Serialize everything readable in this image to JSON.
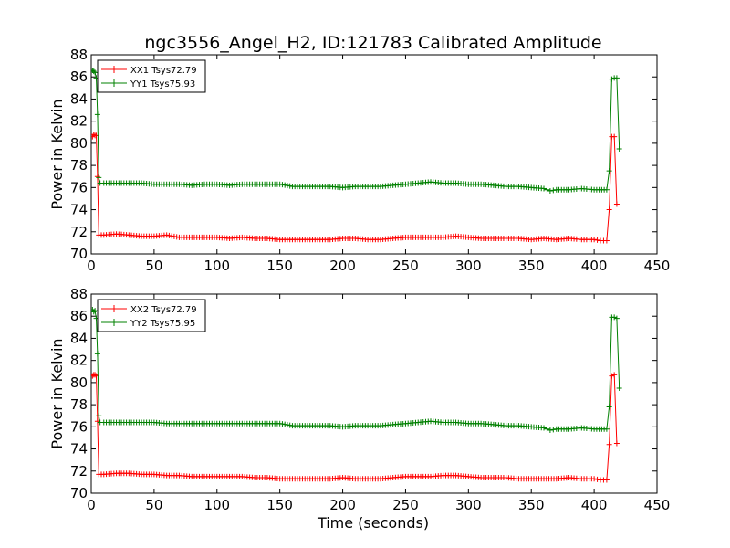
{
  "title": "ngc3556_Angel_H2, ID:121783 Calibrated Amplitude",
  "xlabel": "Time (seconds)",
  "colors": {
    "xx": "#ff0000",
    "yy": "#008000"
  },
  "chart_data": [
    {
      "type": "line",
      "ylabel": "Power in Kelvin",
      "xlim": [
        0,
        450
      ],
      "ylim": [
        70,
        88
      ],
      "xticks": [
        0,
        50,
        100,
        150,
        200,
        250,
        300,
        350,
        400,
        450
      ],
      "yticks": [
        70,
        72,
        74,
        76,
        78,
        80,
        82,
        84,
        86,
        88
      ],
      "legend_position": "top-left",
      "grid": false,
      "series": [
        {
          "name": "XX1 Tsys72.79",
          "color": "#ff0000",
          "points": [
            [
              1,
              80.6
            ],
            [
              2,
              80.8
            ],
            [
              3,
              80.7
            ],
            [
              4,
              80.7
            ],
            [
              5,
              77.0
            ],
            [
              6,
              71.7
            ],
            [
              10,
              71.7
            ],
            [
              20,
              71.8
            ],
            [
              30,
              71.7
            ],
            [
              40,
              71.6
            ],
            [
              50,
              71.6
            ],
            [
              60,
              71.7
            ],
            [
              70,
              71.5
            ],
            [
              80,
              71.5
            ],
            [
              90,
              71.5
            ],
            [
              100,
              71.5
            ],
            [
              110,
              71.4
            ],
            [
              120,
              71.5
            ],
            [
              130,
              71.4
            ],
            [
              140,
              71.4
            ],
            [
              150,
              71.3
            ],
            [
              160,
              71.3
            ],
            [
              170,
              71.3
            ],
            [
              180,
              71.3
            ],
            [
              190,
              71.3
            ],
            [
              200,
              71.4
            ],
            [
              210,
              71.4
            ],
            [
              220,
              71.3
            ],
            [
              230,
              71.3
            ],
            [
              240,
              71.4
            ],
            [
              250,
              71.5
            ],
            [
              260,
              71.5
            ],
            [
              270,
              71.5
            ],
            [
              280,
              71.5
            ],
            [
              290,
              71.6
            ],
            [
              300,
              71.5
            ],
            [
              310,
              71.4
            ],
            [
              320,
              71.4
            ],
            [
              330,
              71.4
            ],
            [
              340,
              71.4
            ],
            [
              350,
              71.3
            ],
            [
              360,
              71.4
            ],
            [
              370,
              71.3
            ],
            [
              380,
              71.4
            ],
            [
              390,
              71.3
            ],
            [
              400,
              71.3
            ],
            [
              405,
              71.2
            ],
            [
              410,
              71.2
            ],
            [
              412,
              74.0
            ],
            [
              414,
              80.6
            ],
            [
              416,
              80.6
            ],
            [
              418,
              74.5
            ]
          ]
        },
        {
          "name": "YY1 Tsys75.93",
          "color": "#008000",
          "points": [
            [
              1,
              86.6
            ],
            [
              2,
              86.5
            ],
            [
              3,
              86.4
            ],
            [
              4,
              85.9
            ],
            [
              5,
              82.6
            ],
            [
              6,
              76.9
            ],
            [
              7,
              76.4
            ],
            [
              10,
              76.4
            ],
            [
              20,
              76.4
            ],
            [
              30,
              76.4
            ],
            [
              40,
              76.4
            ],
            [
              50,
              76.3
            ],
            [
              60,
              76.3
            ],
            [
              70,
              76.3
            ],
            [
              80,
              76.2
            ],
            [
              90,
              76.3
            ],
            [
              100,
              76.3
            ],
            [
              110,
              76.2
            ],
            [
              120,
              76.3
            ],
            [
              130,
              76.3
            ],
            [
              140,
              76.3
            ],
            [
              150,
              76.3
            ],
            [
              160,
              76.1
            ],
            [
              170,
              76.1
            ],
            [
              180,
              76.1
            ],
            [
              190,
              76.1
            ],
            [
              200,
              76.0
            ],
            [
              210,
              76.1
            ],
            [
              220,
              76.1
            ],
            [
              230,
              76.1
            ],
            [
              240,
              76.2
            ],
            [
              250,
              76.3
            ],
            [
              260,
              76.4
            ],
            [
              270,
              76.5
            ],
            [
              280,
              76.4
            ],
            [
              290,
              76.4
            ],
            [
              300,
              76.3
            ],
            [
              310,
              76.3
            ],
            [
              320,
              76.2
            ],
            [
              330,
              76.1
            ],
            [
              340,
              76.1
            ],
            [
              350,
              76.0
            ],
            [
              360,
              75.9
            ],
            [
              365,
              75.7
            ],
            [
              370,
              75.8
            ],
            [
              380,
              75.8
            ],
            [
              390,
              75.9
            ],
            [
              400,
              75.8
            ],
            [
              410,
              75.8
            ],
            [
              412,
              77.5
            ],
            [
              414,
              85.8
            ],
            [
              416,
              85.9
            ],
            [
              418,
              85.9
            ],
            [
              420,
              79.5
            ]
          ]
        }
      ]
    },
    {
      "type": "line",
      "ylabel": "Power in Kelvin",
      "xlim": [
        0,
        450
      ],
      "ylim": [
        70,
        88
      ],
      "xticks": [
        0,
        50,
        100,
        150,
        200,
        250,
        300,
        350,
        400,
        450
      ],
      "yticks": [
        70,
        72,
        74,
        76,
        78,
        80,
        82,
        84,
        86,
        88
      ],
      "legend_position": "top-left",
      "grid": false,
      "series": [
        {
          "name": "XX2 Tsys72.79",
          "color": "#ff0000",
          "points": [
            [
              1,
              80.6
            ],
            [
              2,
              80.7
            ],
            [
              3,
              80.7
            ],
            [
              4,
              80.6
            ],
            [
              5,
              76.5
            ],
            [
              6,
              71.7
            ],
            [
              10,
              71.7
            ],
            [
              20,
              71.8
            ],
            [
              30,
              71.8
            ],
            [
              40,
              71.7
            ],
            [
              50,
              71.7
            ],
            [
              60,
              71.6
            ],
            [
              70,
              71.6
            ],
            [
              80,
              71.5
            ],
            [
              90,
              71.5
            ],
            [
              100,
              71.5
            ],
            [
              110,
              71.5
            ],
            [
              120,
              71.5
            ],
            [
              130,
              71.4
            ],
            [
              140,
              71.4
            ],
            [
              150,
              71.3
            ],
            [
              160,
              71.3
            ],
            [
              170,
              71.3
            ],
            [
              180,
              71.3
            ],
            [
              190,
              71.3
            ],
            [
              200,
              71.4
            ],
            [
              210,
              71.3
            ],
            [
              220,
              71.3
            ],
            [
              230,
              71.3
            ],
            [
              240,
              71.4
            ],
            [
              250,
              71.5
            ],
            [
              260,
              71.5
            ],
            [
              270,
              71.5
            ],
            [
              280,
              71.6
            ],
            [
              290,
              71.6
            ],
            [
              300,
              71.5
            ],
            [
              310,
              71.4
            ],
            [
              320,
              71.4
            ],
            [
              330,
              71.4
            ],
            [
              340,
              71.3
            ],
            [
              350,
              71.3
            ],
            [
              360,
              71.3
            ],
            [
              370,
              71.3
            ],
            [
              380,
              71.4
            ],
            [
              390,
              71.3
            ],
            [
              400,
              71.3
            ],
            [
              405,
              71.2
            ],
            [
              410,
              71.2
            ],
            [
              412,
              74.4
            ],
            [
              414,
              80.6
            ],
            [
              416,
              80.7
            ],
            [
              418,
              74.5
            ]
          ]
        },
        {
          "name": "YY2 Tsys75.95",
          "color": "#008000",
          "points": [
            [
              1,
              86.6
            ],
            [
              2,
              86.4
            ],
            [
              3,
              86.5
            ],
            [
              4,
              85.8
            ],
            [
              5,
              82.6
            ],
            [
              6,
              77.0
            ],
            [
              7,
              76.4
            ],
            [
              10,
              76.4
            ],
            [
              20,
              76.4
            ],
            [
              30,
              76.4
            ],
            [
              40,
              76.4
            ],
            [
              50,
              76.4
            ],
            [
              60,
              76.3
            ],
            [
              70,
              76.3
            ],
            [
              80,
              76.3
            ],
            [
              90,
              76.3
            ],
            [
              100,
              76.3
            ],
            [
              110,
              76.3
            ],
            [
              120,
              76.3
            ],
            [
              130,
              76.3
            ],
            [
              140,
              76.3
            ],
            [
              150,
              76.3
            ],
            [
              160,
              76.1
            ],
            [
              170,
              76.1
            ],
            [
              180,
              76.1
            ],
            [
              190,
              76.1
            ],
            [
              200,
              76.0
            ],
            [
              210,
              76.1
            ],
            [
              220,
              76.1
            ],
            [
              230,
              76.1
            ],
            [
              240,
              76.2
            ],
            [
              250,
              76.3
            ],
            [
              260,
              76.4
            ],
            [
              270,
              76.5
            ],
            [
              280,
              76.4
            ],
            [
              290,
              76.4
            ],
            [
              300,
              76.3
            ],
            [
              310,
              76.3
            ],
            [
              320,
              76.2
            ],
            [
              330,
              76.1
            ],
            [
              340,
              76.1
            ],
            [
              350,
              76.0
            ],
            [
              360,
              75.9
            ],
            [
              365,
              75.7
            ],
            [
              370,
              75.8
            ],
            [
              380,
              75.8
            ],
            [
              390,
              75.9
            ],
            [
              400,
              75.8
            ],
            [
              410,
              75.8
            ],
            [
              412,
              77.8
            ],
            [
              414,
              85.9
            ],
            [
              416,
              85.9
            ],
            [
              418,
              85.8
            ],
            [
              420,
              79.5
            ]
          ]
        }
      ]
    }
  ]
}
